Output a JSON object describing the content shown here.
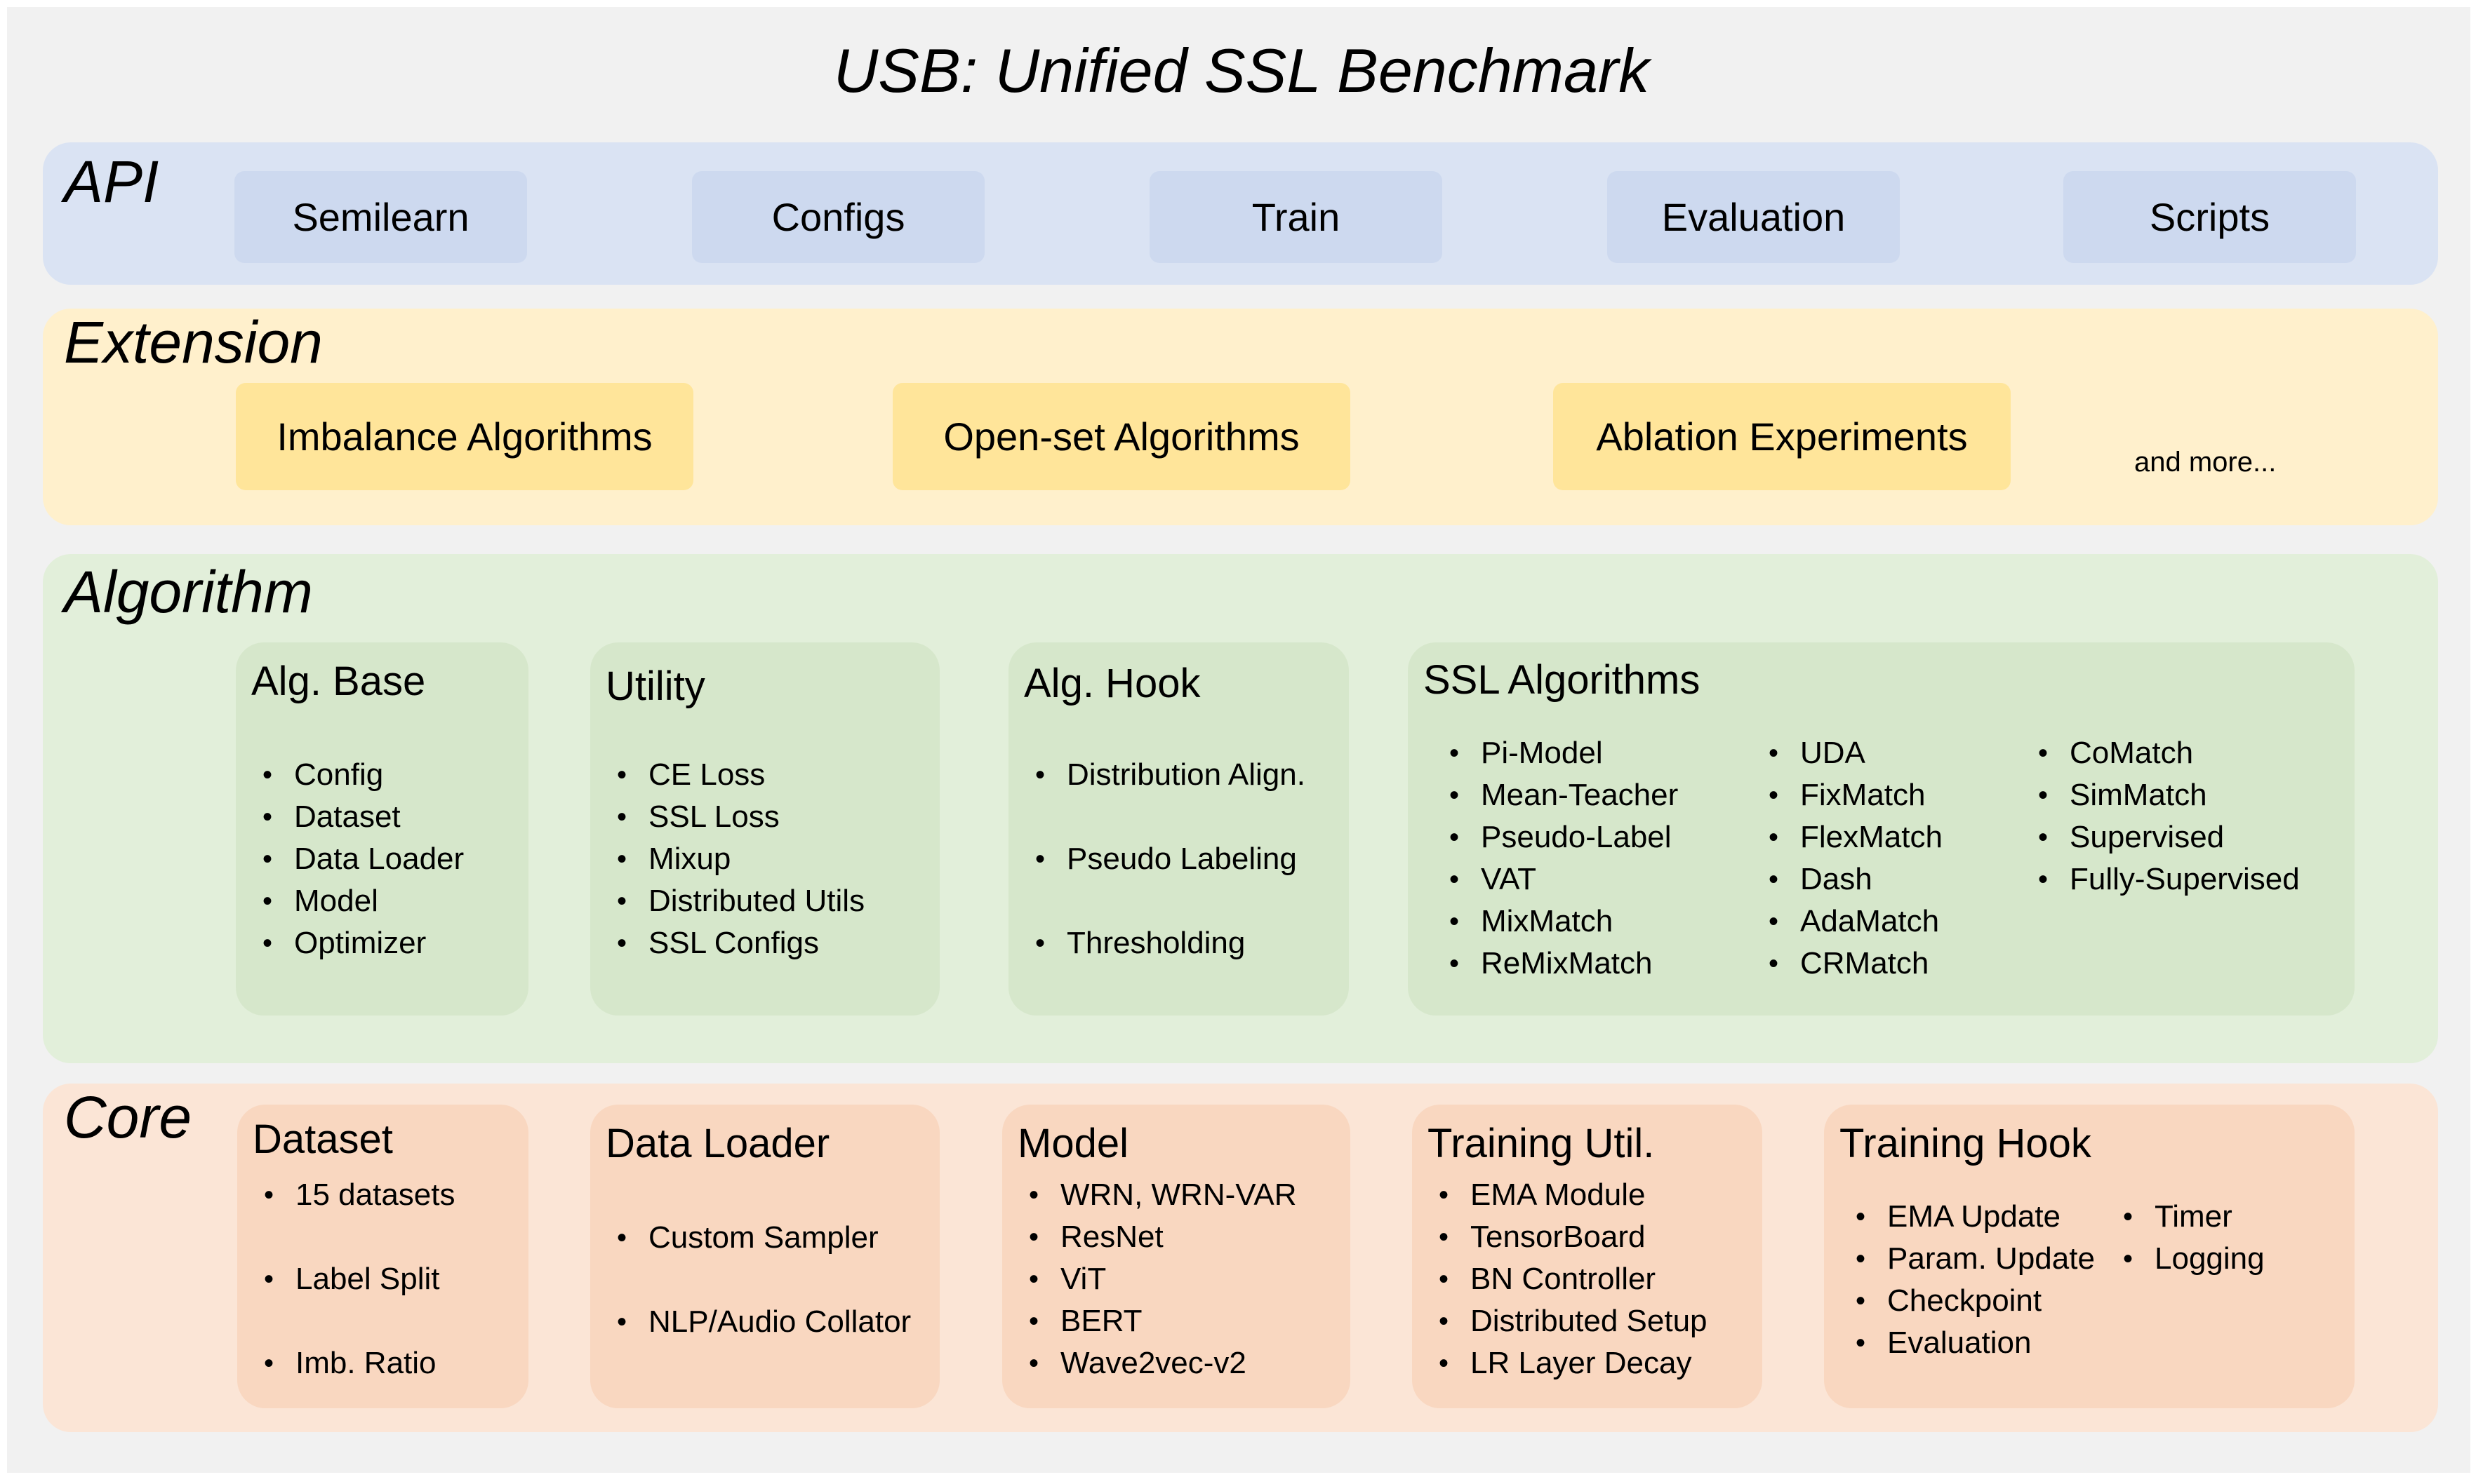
{
  "title": "USB:  Unified  SSL Benchmark",
  "colors": {
    "background": "#f1f1f1",
    "api_band": "#dae3f3",
    "api_item": "#cdd9ef",
    "extension_band": "#fff0cc",
    "extension_item": "#ffe59a",
    "algorithm_band": "#e2efda",
    "algorithm_box": "#d6e7cb",
    "core_band": "#fbe5d6",
    "core_box": "#f9d7c0"
  },
  "api": {
    "label": "API",
    "items": [
      "Semilearn",
      "Configs",
      "Train",
      "Evaluation",
      "Scripts"
    ]
  },
  "extension": {
    "label": "Extension",
    "items": [
      "Imbalance  Algorithms",
      "Open-set  Algorithms",
      "Ablation Experiments"
    ],
    "more": "and more..."
  },
  "algorithm": {
    "label": "Algorithm",
    "boxes": [
      {
        "title": "Alg. Base",
        "columns": [
          [
            "Config",
            "Dataset",
            "Data Loader",
            "Model",
            "Optimizer"
          ]
        ]
      },
      {
        "title": "Utility",
        "columns": [
          [
            "CE Loss",
            "SSL Loss",
            "Mixup",
            "Distributed Utils",
            "SSL Configs"
          ]
        ]
      },
      {
        "title": "Alg. Hook",
        "columns": [
          [
            "Distribution Align.",
            "Pseudo Labeling",
            "Thresholding"
          ]
        ]
      },
      {
        "title": "SSL Algorithms",
        "columns": [
          [
            "Pi-Model",
            "Mean-Teacher",
            "Pseudo-Label",
            "VAT",
            "MixMatch",
            "ReMixMatch"
          ],
          [
            "UDA",
            "FixMatch",
            "FlexMatch",
            "Dash",
            "AdaMatch",
            "CRMatch"
          ],
          [
            "CoMatch",
            "SimMatch",
            "Supervised",
            "Fully-Supervised"
          ]
        ]
      }
    ]
  },
  "core": {
    "label": "Core",
    "boxes": [
      {
        "title": "Dataset",
        "columns": [
          [
            "15 datasets",
            "Label Split",
            "Imb.  Ratio"
          ]
        ]
      },
      {
        "title": "Data Loader",
        "columns": [
          [
            "Custom Sampler",
            "NLP/Audio Collator"
          ]
        ]
      },
      {
        "title": "Model",
        "columns": [
          [
            "WRN, WRN-VAR",
            "ResNet",
            "ViT",
            "BERT",
            "Wave2vec-v2"
          ]
        ]
      },
      {
        "title": "Training Util.",
        "columns": [
          [
            "EMA Module",
            "TensorBoard",
            "BN Controller",
            "Distributed Setup",
            "LR Layer Decay"
          ]
        ]
      },
      {
        "title": "Training Hook",
        "columns": [
          [
            "EMA Update",
            "Param. Update",
            "Checkpoint",
            "Evaluation"
          ],
          [
            "Timer",
            "Logging"
          ]
        ]
      }
    ]
  }
}
